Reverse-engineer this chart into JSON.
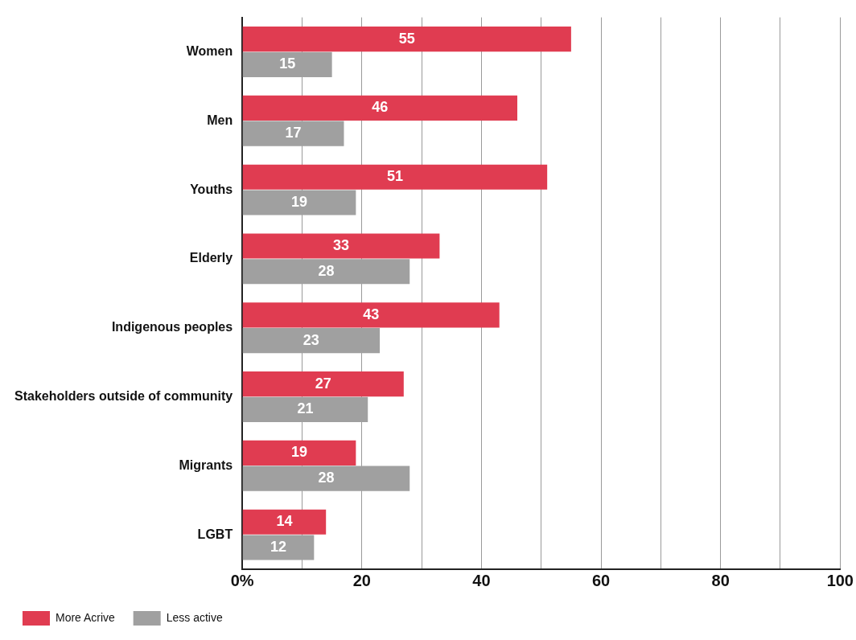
{
  "chart_data": {
    "type": "bar",
    "orientation": "horizontal",
    "categories": [
      "Women",
      "Men",
      "Youths",
      "Elderly",
      "Indigenous peoples",
      "Stakeholders outside of community",
      "Migrants",
      "LGBT"
    ],
    "series": [
      {
        "name": "More Acrive",
        "color": "#e03c51",
        "values": [
          55,
          46,
          51,
          33,
          43,
          27,
          19,
          14
        ]
      },
      {
        "name": "Less active",
        "color": "#a0a0a0",
        "values": [
          15,
          17,
          19,
          28,
          23,
          21,
          28,
          12
        ]
      }
    ],
    "xlim": [
      0,
      100
    ],
    "xticks": [
      {
        "value": 0,
        "label": "0%"
      },
      {
        "value": 10,
        "label": null
      },
      20,
      {
        "value": 30,
        "label": null
      },
      40,
      {
        "value": 50,
        "label": null
      },
      60,
      {
        "value": 70,
        "label": null
      },
      80,
      {
        "value": 90,
        "label": null
      },
      100
    ],
    "grid": "x",
    "legend": "bottom left",
    "data_labels": true
  }
}
